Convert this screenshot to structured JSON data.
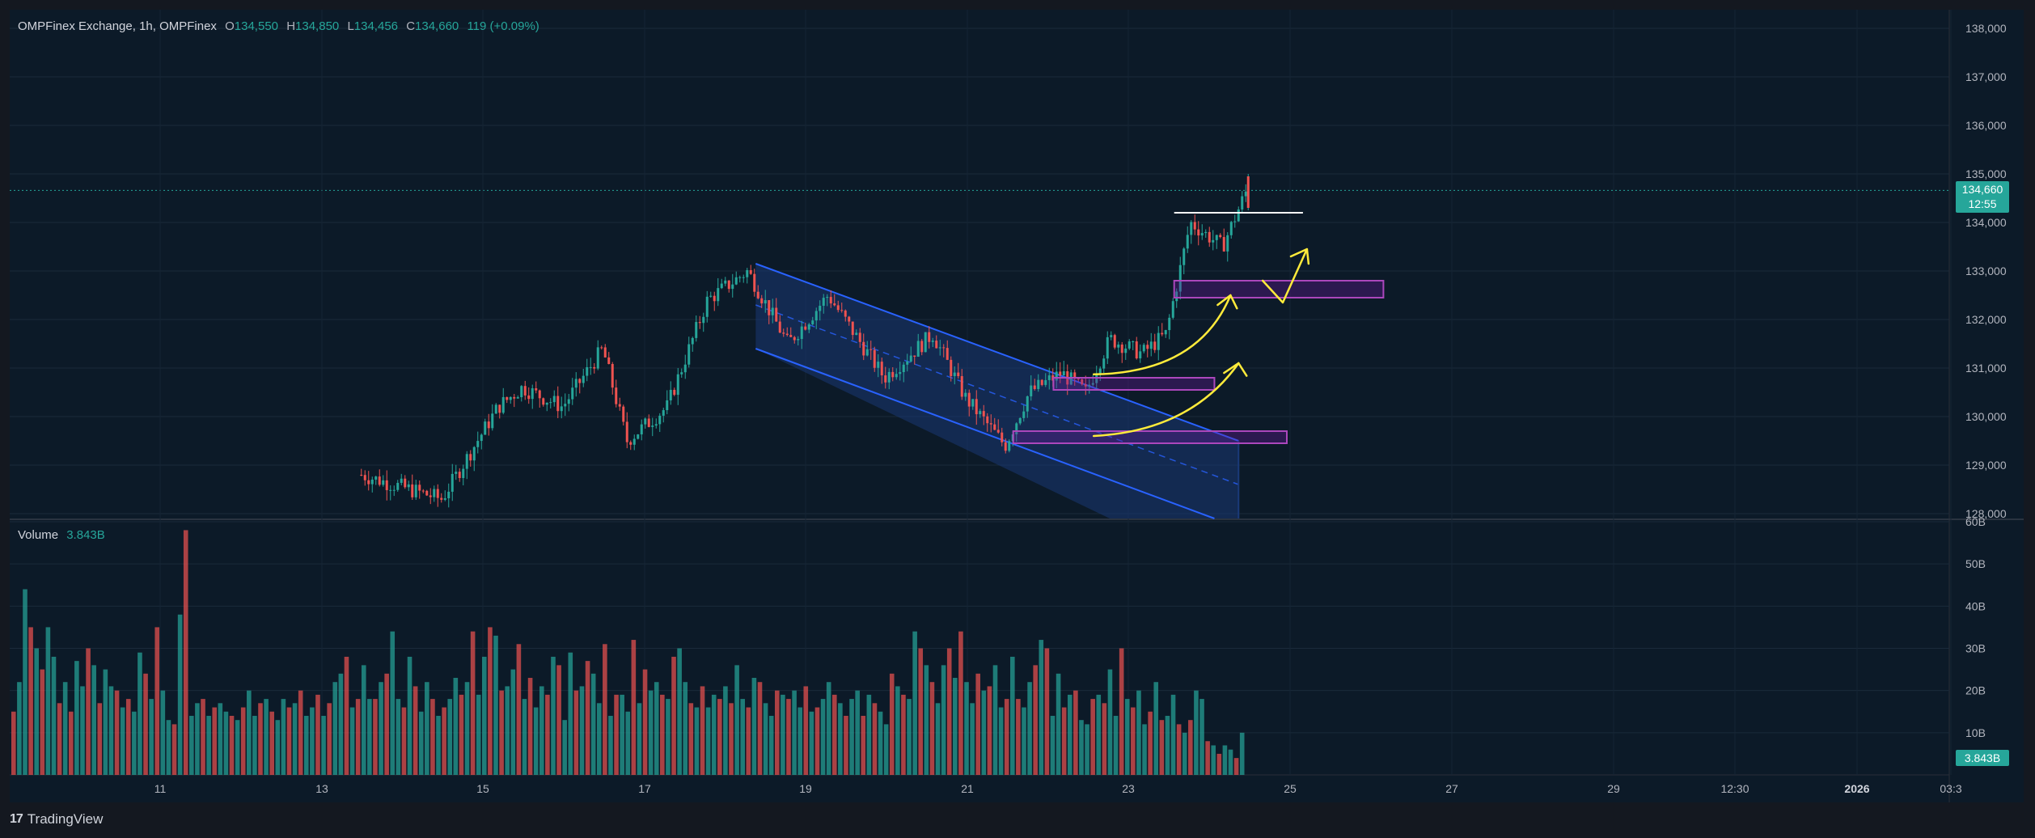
{
  "header": {
    "symbol": "OMPFinex Exchange, 1h, OMPFinex",
    "o_label": "O",
    "o_value": "134,550",
    "h_label": "H",
    "h_value": "134,850",
    "l_label": "L",
    "l_value": "134,456",
    "c_label": "C",
    "c_value": "134,660",
    "change": "119 (+0.09%)"
  },
  "volume_header": {
    "label": "Volume",
    "value": "3.843B"
  },
  "price_badge": {
    "price": "134,660",
    "countdown": "12:55"
  },
  "volume_badge": "3.843B",
  "brand": {
    "mark": "17",
    "name": "TradingView"
  },
  "colors": {
    "up": "#26a69a",
    "down": "#ef5350",
    "channel": "#2962ff",
    "zone": "#ab47bc",
    "arrow": "#ffeb3b",
    "background": "#0c1a28"
  },
  "chart_data": [
    {
      "type": "candlestick",
      "title": "",
      "y_axis_ticks": [
        "128,000",
        "129,000",
        "130,000",
        "131,000",
        "132,000",
        "133,000",
        "134,000",
        "135,000",
        "136,000",
        "137,000",
        "138,000"
      ],
      "ylim": [
        127900,
        138300
      ],
      "x_axis_ticks": [
        "11",
        "13",
        "15",
        "17",
        "19",
        "21",
        "23",
        "25",
        "27",
        "29",
        "12:30",
        "2026",
        "03:3"
      ],
      "last_price": 134660,
      "price_path": [
        {
          "x": 13.5,
          "y": 128800
        },
        {
          "x": 14.5,
          "y": 128300
        },
        {
          "x": 15.2,
          "y": 130200
        },
        {
          "x": 15.5,
          "y": 130600
        },
        {
          "x": 16.0,
          "y": 130200
        },
        {
          "x": 16.5,
          "y": 131400
        },
        {
          "x": 16.8,
          "y": 129500
        },
        {
          "x": 17.3,
          "y": 130200
        },
        {
          "x": 17.8,
          "y": 132400
        },
        {
          "x": 18.3,
          "y": 133000
        },
        {
          "x": 18.8,
          "y": 131500
        },
        {
          "x": 19.3,
          "y": 132500
        },
        {
          "x": 20.0,
          "y": 130800
        },
        {
          "x": 20.6,
          "y": 131700
        },
        {
          "x": 21.0,
          "y": 130400
        },
        {
          "x": 21.5,
          "y": 129400
        },
        {
          "x": 21.8,
          "y": 130500
        },
        {
          "x": 22.2,
          "y": 130900
        },
        {
          "x": 22.5,
          "y": 130500
        },
        {
          "x": 22.8,
          "y": 131600
        },
        {
          "x": 23.2,
          "y": 131300
        },
        {
          "x": 23.5,
          "y": 131700
        },
        {
          "x": 23.8,
          "y": 134000
        },
        {
          "x": 24.2,
          "y": 133500
        },
        {
          "x": 24.5,
          "y": 134660
        }
      ],
      "annotations": {
        "horizontal_line": 134200,
        "zones": [
          [
            132450,
            132800
          ],
          [
            130550,
            130800
          ],
          [
            129450,
            129700
          ]
        ]
      }
    },
    {
      "type": "bar",
      "title": "Volume",
      "y_axis_ticks": [
        "10B",
        "20B",
        "30B",
        "40B",
        "50B",
        "60B"
      ],
      "ylim": [
        0,
        60
      ],
      "unit": "B",
      "values": [
        15,
        22,
        44,
        35,
        30,
        25,
        35,
        28,
        17,
        22,
        15,
        27,
        21,
        30,
        26,
        17,
        25,
        21,
        20,
        16,
        18,
        15,
        29,
        24,
        18,
        35,
        20,
        13,
        12,
        38,
        58,
        14,
        17,
        18,
        14,
        16,
        17,
        15,
        14,
        13,
        16,
        20,
        14,
        17,
        18,
        15,
        13,
        18,
        16,
        17,
        20,
        14,
        16,
        19,
        14,
        17,
        22,
        24,
        28,
        16,
        18,
        26,
        18,
        18,
        22,
        24,
        34,
        18,
        16,
        28,
        21,
        15,
        22,
        18,
        14,
        16,
        18,
        23,
        19,
        22,
        34,
        19,
        28,
        35,
        33,
        20,
        21,
        25,
        31,
        18,
        23,
        16,
        21,
        19,
        28,
        26,
        13,
        29,
        20,
        21,
        27,
        24,
        17,
        31,
        14,
        19,
        19,
        15,
        32,
        17,
        25,
        20,
        22,
        19,
        18,
        28,
        30,
        22,
        17,
        16,
        21,
        16,
        19,
        18,
        21,
        17,
        26,
        18,
        16,
        23,
        22,
        17,
        14,
        20,
        19,
        18,
        20,
        16,
        21,
        15,
        16,
        18,
        22,
        19,
        17,
        14,
        18,
        20,
        14,
        19,
        17,
        15,
        12,
        24,
        21,
        19,
        18,
        34,
        30,
        26,
        22,
        17,
        26,
        30,
        23,
        34,
        22,
        17,
        24,
        20,
        21,
        26,
        16,
        18,
        28,
        18,
        16,
        22,
        26,
        32,
        30,
        14,
        24,
        16,
        19,
        20,
        13,
        12,
        18,
        19,
        17,
        25,
        14,
        30,
        18,
        16,
        20,
        12,
        15,
        22,
        13,
        14,
        19,
        12,
        10,
        13,
        20,
        18,
        8,
        7,
        5,
        7,
        6,
        4,
        10
      ]
    }
  ]
}
